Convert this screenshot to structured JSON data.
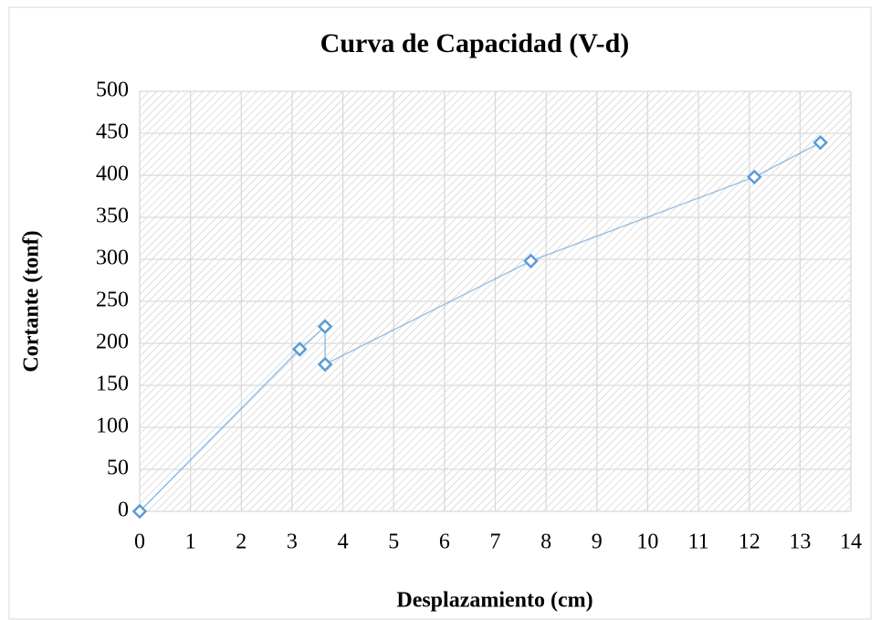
{
  "chart_data": {
    "type": "line",
    "title": "Curva de Capacidad (V-d)",
    "x_label": "Desplazamiento (cm)",
    "y_label": "Cortante (tonf)",
    "series": [
      {
        "x": [
          0,
          3.15,
          3.65,
          3.65,
          7.7,
          12.1,
          13.4
        ],
        "values": [
          0,
          193,
          220,
          175,
          298,
          398,
          439
        ],
        "color": "#5b9bd5"
      }
    ],
    "xlim": [
      0,
      14
    ],
    "xticks": [
      0,
      1,
      2,
      3,
      4,
      5,
      6,
      7,
      8,
      9,
      10,
      11,
      12,
      13,
      14
    ],
    "ylim": [
      0,
      500
    ],
    "yticks": [
      0,
      50,
      100,
      150,
      200,
      250,
      300,
      350,
      400,
      450,
      500
    ],
    "grid": true
  }
}
